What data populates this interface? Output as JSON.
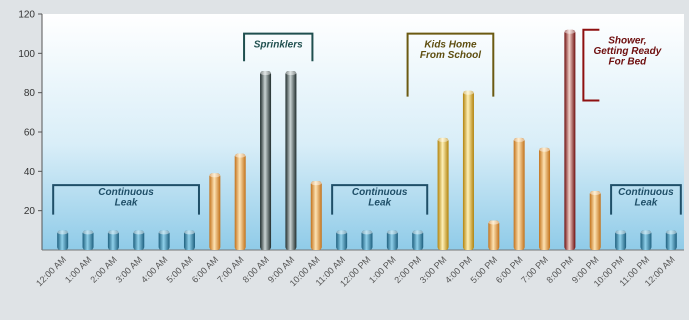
{
  "chart_data": {
    "type": "bar",
    "title": "",
    "xlabel": "",
    "ylabel": "",
    "ylim": [
      0,
      120
    ],
    "yticks": [
      20,
      40,
      60,
      80,
      100,
      120
    ],
    "categories": [
      "12:00 AM",
      "1:00 AM",
      "2:00 AM",
      "3:00 AM",
      "4:00 AM",
      "5:00 AM",
      "6:00 AM",
      "7:00 AM",
      "8:00 AM",
      "9:00 AM",
      "10:00 AM",
      "11:00 AM",
      "12:00 PM",
      "1:00 PM",
      "2:00 PM",
      "3:00 PM",
      "4:00 PM",
      "5:00 PM",
      "6:00 PM",
      "7:00 PM",
      "8:00 PM",
      "9:00 PM",
      "10:00 PM",
      "11:00 PM",
      "12:00 AM"
    ],
    "values": [
      10,
      10,
      10,
      10,
      10,
      10,
      39,
      49,
      91,
      91,
      35,
      10,
      10,
      10,
      10,
      57,
      81,
      15,
      57,
      52,
      112,
      30,
      10,
      10,
      10
    ],
    "bar_styles": [
      "leak",
      "leak",
      "leak",
      "leak",
      "leak",
      "leak",
      "normal",
      "normal",
      "sprinkler",
      "sprinkler",
      "normal",
      "leak",
      "leak",
      "leak",
      "leak",
      "kids",
      "kids",
      "normal",
      "normal",
      "normal",
      "shower",
      "normal",
      "leak",
      "leak",
      "leak"
    ],
    "annotations": [
      {
        "text": [
          "Continuous",
          "Leak"
        ],
        "from_index": 0,
        "to_index": 5,
        "style": "leak"
      },
      {
        "text": [
          "Sprinklers"
        ],
        "from_index": 8,
        "to_index": 9,
        "style": "sprinkler"
      },
      {
        "text": [
          "Continuous",
          "Leak"
        ],
        "from_index": 11,
        "to_index": 14,
        "style": "leak"
      },
      {
        "text": [
          "Kids Home",
          "From School"
        ],
        "from_index": 15,
        "to_index": 17,
        "style": "kids"
      },
      {
        "text": [
          "Shower,",
          "Getting Ready",
          "For Bed"
        ],
        "from_index": 20,
        "to_index": 20,
        "style": "shower"
      },
      {
        "text": [
          "Continuous",
          "Leak"
        ],
        "from_index": 22,
        "to_index": 24,
        "style": "leak"
      }
    ],
    "grid": false,
    "colors": {
      "leak": "#3f8fb0",
      "normal": "#e8952c",
      "sprinkler": "#2f3f3f",
      "kids": "#d9a60e",
      "shower": "#8e1616",
      "bracket_leak": "#1f4f68",
      "bracket_sprinkler": "#1f4f4f",
      "bracket_kids": "#6b5a12",
      "bracket_shower": "#8e1010",
      "text_leak": "#1f4f68",
      "text_sprinkler": "#1f4f4f",
      "text_kids": "#5e4e10",
      "text_shower": "#6e0e0e"
    }
  }
}
